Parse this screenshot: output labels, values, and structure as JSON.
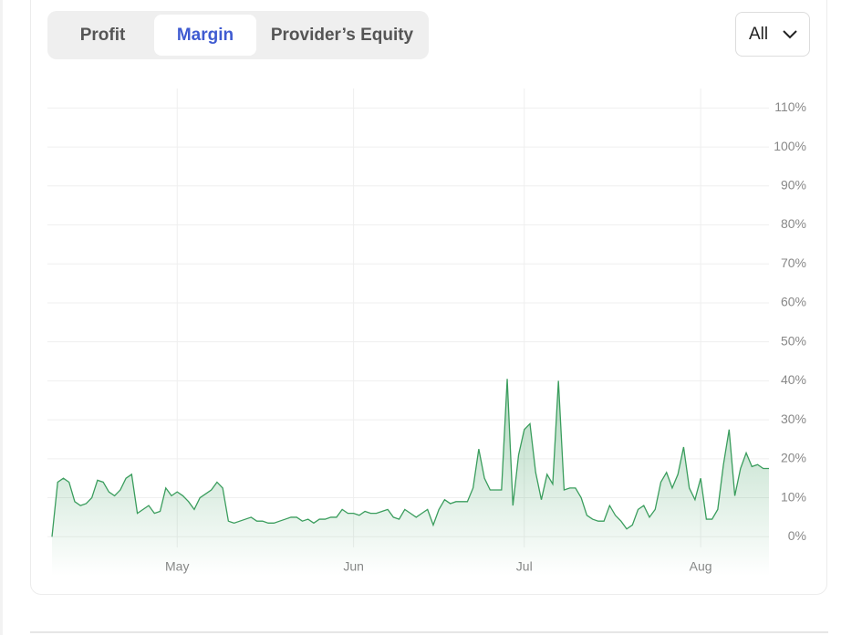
{
  "tabs": [
    "Profit",
    "Margin",
    "Provider’s Equity"
  ],
  "active_tab": 1,
  "range_select": "All",
  "chart_data": {
    "type": "area",
    "color": "#3a9d5d",
    "grid": true,
    "categories": [
      null,
      null,
      null,
      null,
      null,
      null,
      null,
      null,
      null,
      null,
      null,
      null,
      null,
      null,
      null,
      null,
      null,
      null,
      null,
      null,
      null,
      null,
      "May",
      null,
      null,
      null,
      null,
      null,
      null,
      null,
      null,
      null,
      null,
      null,
      null,
      null,
      null,
      null,
      null,
      null,
      null,
      null,
      null,
      null,
      null,
      null,
      null,
      null,
      null,
      null,
      null,
      null,
      null,
      "Jun",
      null,
      null,
      null,
      null,
      null,
      null,
      null,
      null,
      null,
      null,
      null,
      null,
      null,
      null,
      null,
      null,
      null,
      null,
      null,
      null,
      null,
      null,
      null,
      null,
      null,
      null,
      null,
      null,
      null,
      "Jul",
      null,
      null,
      null,
      null,
      null,
      null,
      null,
      null,
      null,
      null,
      null,
      null,
      null,
      null,
      null,
      null,
      null,
      null,
      null,
      null,
      null,
      null,
      null,
      null,
      null,
      null,
      null,
      null,
      null,
      null,
      "Aug",
      null,
      null,
      null,
      null,
      null,
      null,
      null,
      null,
      null,
      null,
      null,
      null
    ],
    "values": [
      0,
      14,
      15,
      14,
      9,
      8,
      8.5,
      10,
      14.5,
      14,
      11.5,
      10.5,
      12,
      15,
      16,
      6,
      7,
      8,
      6,
      6.5,
      12.5,
      10.5,
      11.5,
      10.5,
      9,
      7,
      10,
      11,
      12,
      14,
      12.5,
      4,
      3.5,
      4,
      4.5,
      5,
      4,
      4,
      3.5,
      3.5,
      4,
      4.5,
      5,
      5,
      4,
      4.5,
      3.5,
      4.5,
      4.5,
      5,
      5,
      7,
      6,
      6,
      5.5,
      6.5,
      6,
      6,
      6.5,
      7,
      5,
      4.5,
      7,
      6,
      5,
      6,
      7,
      3,
      7,
      9.5,
      8.5,
      9,
      9,
      9,
      12.5,
      22.5,
      15,
      12,
      12,
      12,
      40.5,
      8,
      21,
      27.5,
      29,
      16.5,
      9.5,
      16,
      13.5,
      40,
      12,
      12.5,
      12.5,
      10,
      5.5,
      4.5,
      4,
      4,
      8,
      5.5,
      4,
      2,
      3,
      7,
      8,
      5,
      7,
      14,
      16.5,
      12.5,
      16,
      23,
      12.5,
      9.5,
      15,
      4.5,
      4.5,
      7,
      18.5,
      27.5,
      10.5,
      17.5,
      21.5,
      18,
      18.5,
      17.5,
      17.5
    ],
    "ylim": [
      -10,
      115
    ],
    "yticks": [
      {
        "value": 0,
        "label": "0%"
      },
      {
        "value": 10,
        "label": "10%"
      },
      {
        "value": 20,
        "label": "20%"
      },
      {
        "value": 30,
        "label": "30%"
      },
      {
        "value": 40,
        "label": "40%"
      },
      {
        "value": 50,
        "label": "50%"
      },
      {
        "value": 60,
        "label": "60%"
      },
      {
        "value": 70,
        "label": "70%"
      },
      {
        "value": 80,
        "label": "80%"
      },
      {
        "value": 90,
        "label": "90%"
      },
      {
        "value": 100,
        "label": "100%"
      },
      {
        "value": 110,
        "label": "110%"
      }
    ]
  }
}
